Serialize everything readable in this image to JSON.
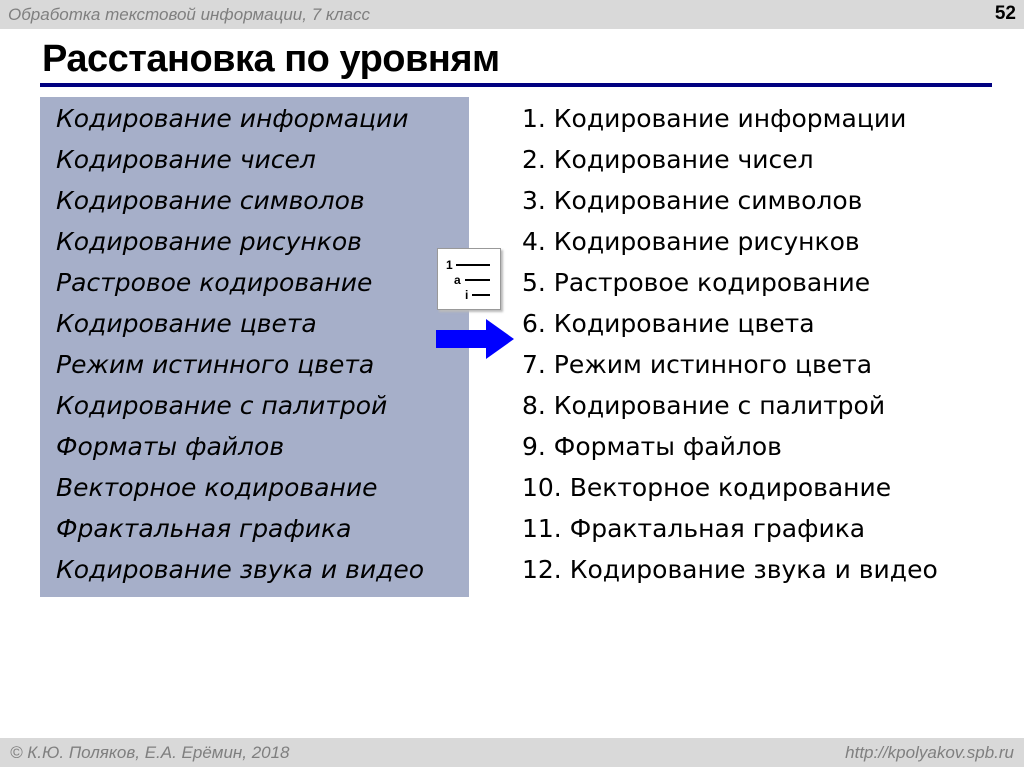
{
  "header": {
    "course": "Обработка текстовой информации, 7 класс",
    "slide_number": "52"
  },
  "title": "Расстановка по уровням",
  "left_items": [
    "Кодирование информации",
    "Кодирование чисел",
    "Кодирование символов",
    "Кодирование рисунков",
    "Растровое кодирование",
    "Кодирование цвета",
    "Режим истинного цвета",
    "Кодирование с палитрой",
    "Форматы файлов",
    "Векторное кодирование",
    "Фрактальная графика",
    "Кодирование звука и видео"
  ],
  "right_items": [
    "1. Кодирование информации",
    "2. Кодирование чисел",
    "3. Кодирование символов",
    "4. Кодирование рисунков",
    "5. Растровое кодирование",
    "6. Кодирование цвета",
    "7. Режим истинного цвета",
    "8. Кодирование с палитрой",
    "9. Форматы файлов",
    "10. Векторное кодирование",
    "11. Фрактальная графика",
    "12. Кодирование звука и видео"
  ],
  "icon": {
    "name": "multilevel-list-icon",
    "labels": [
      "1",
      "a",
      "i"
    ]
  },
  "colors": {
    "box": "#a6afc9",
    "rule": "#000080",
    "arrow": "#0000ff"
  },
  "footer": {
    "authors": "© К.Ю. Поляков, Е.А. Ерёмин, 2018",
    "url": "http://kpolyakov.spb.ru"
  }
}
